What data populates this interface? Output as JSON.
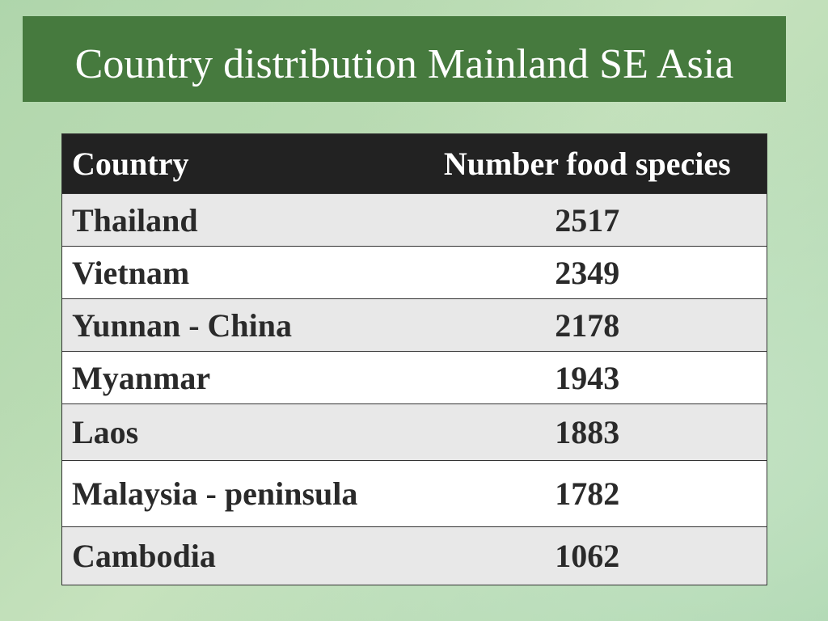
{
  "title": "Country distribution Mainland SE Asia",
  "table": {
    "header": [
      "Country",
      "Number food species"
    ],
    "rows": [
      [
        "Thailand",
        2517
      ],
      [
        "Vietnam",
        2349
      ],
      [
        "Yunnan - China",
        2178
      ],
      [
        "Myanmar",
        1943
      ],
      [
        "Laos",
        1883
      ],
      [
        "Malaysia - peninsula",
        1782
      ],
      [
        "Cambodia",
        1062
      ]
    ]
  }
}
